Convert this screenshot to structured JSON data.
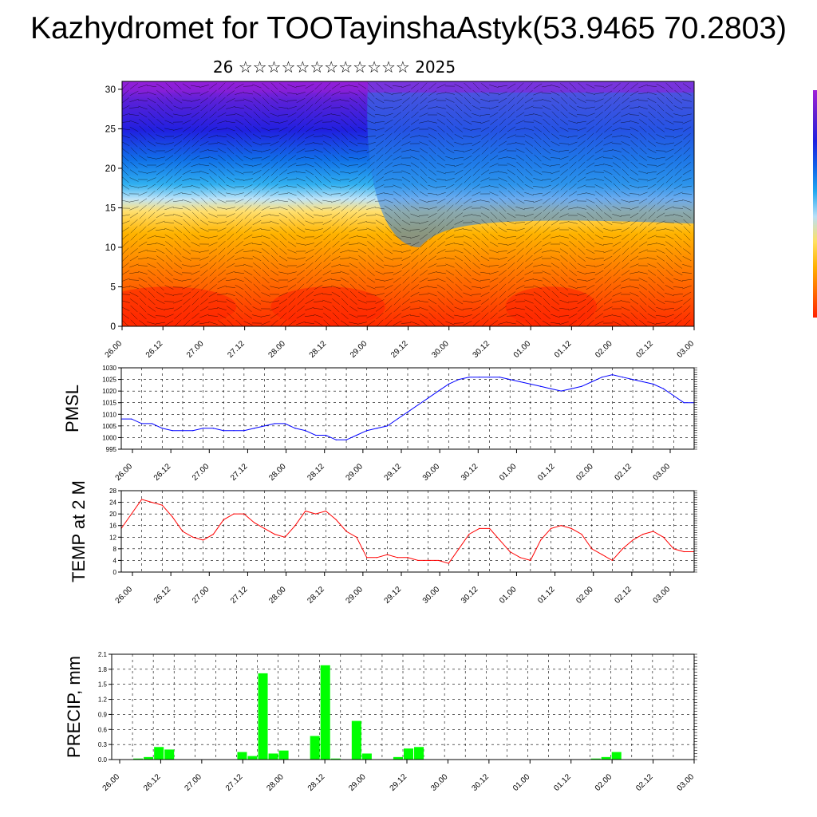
{
  "title": "Kazhydromet for TOOTayinshaAstyk(53.9465 70.2803)",
  "subtitle": "26 ☆☆☆☆☆☆☆☆☆☆☆☆ 2025",
  "x_tick_labels": [
    "26.00",
    "26.12",
    "27.00",
    "27.12",
    "28.00",
    "28.12",
    "29.00",
    "29.12",
    "30.00",
    "30.12",
    "01.00",
    "01.12",
    "02.00",
    "02.12",
    "03.00"
  ],
  "colors": {
    "pmsl_line": "#0000ff",
    "temp_line": "#ff0000",
    "precip_bar": "#00ff00",
    "grid": "#000000"
  },
  "chart_data": [
    {
      "type": "heatmap",
      "name": "cross-section",
      "ylim": [
        0,
        31
      ],
      "yticks": [
        0,
        5,
        10,
        15,
        20,
        25,
        30
      ],
      "xlabel": "",
      "ylabel": "",
      "colormap": [
        "#ff2000",
        "#ff6a00",
        "#ffb000",
        "#ffe060",
        "#b8e0f8",
        "#20a8f0",
        "#1060e8",
        "#2020e0",
        "#6020d0",
        "#a020d8"
      ],
      "layers_note_values": [
        5,
        10,
        15,
        20,
        25,
        30
      ]
    },
    {
      "type": "line",
      "name": "pmsl",
      "ylabel": "PMSL",
      "ylim": [
        995,
        1030
      ],
      "yticks": [
        995,
        1000,
        1005,
        1010,
        1015,
        1020,
        1025,
        1030
      ],
      "x": [
        0,
        1,
        2,
        3,
        4,
        5,
        6,
        7,
        8,
        9,
        10,
        11,
        12,
        13,
        14,
        15,
        16,
        17,
        18,
        19,
        20,
        21,
        22,
        23,
        24,
        25,
        26,
        27,
        28,
        29,
        30,
        31,
        32,
        33,
        34,
        35,
        36,
        37,
        38,
        39,
        40,
        41,
        42,
        43,
        44,
        45,
        46,
        47,
        48,
        49,
        50,
        51,
        52,
        53,
        54,
        55,
        56
      ],
      "values": [
        1008,
        1008,
        1006,
        1006,
        1004,
        1003,
        1003,
        1003,
        1004,
        1004,
        1003,
        1003,
        1003,
        1004,
        1005,
        1006,
        1006,
        1004,
        1003,
        1001,
        1001,
        999,
        999,
        1001,
        1003,
        1004,
        1005,
        1008,
        1011,
        1014,
        1017,
        1020,
        1023,
        1025,
        1026,
        1026,
        1026,
        1026,
        1025,
        1024,
        1023,
        1022,
        1021,
        1020,
        1021,
        1022,
        1024,
        1026,
        1027,
        1026,
        1025,
        1024,
        1023,
        1021,
        1018,
        1015,
        1015
      ],
      "xlabel": ""
    },
    {
      "type": "line",
      "name": "temp",
      "ylabel": "TEMP at 2 M",
      "ylim": [
        0,
        28
      ],
      "yticks": [
        0,
        4,
        8,
        12,
        16,
        20,
        24,
        28
      ],
      "x": [
        0,
        1,
        2,
        3,
        4,
        5,
        6,
        7,
        8,
        9,
        10,
        11,
        12,
        13,
        14,
        15,
        16,
        17,
        18,
        19,
        20,
        21,
        22,
        23,
        24,
        25,
        26,
        27,
        28,
        29,
        30,
        31,
        32,
        33,
        34,
        35,
        36,
        37,
        38,
        39,
        40,
        41,
        42,
        43,
        44,
        45,
        46,
        47,
        48,
        49,
        50,
        51,
        52,
        53,
        54,
        55,
        56
      ],
      "values": [
        15,
        20,
        25,
        24,
        23,
        19,
        14,
        12,
        11,
        13,
        18,
        20,
        20,
        17,
        15,
        13,
        12,
        16,
        21,
        20,
        21,
        18,
        14,
        12,
        5,
        5,
        6,
        5,
        5,
        4,
        4,
        4,
        3,
        8,
        13,
        15,
        15,
        11,
        7,
        5,
        4,
        11,
        15,
        16,
        15,
        13,
        8,
        6,
        4,
        8,
        11,
        13,
        14,
        12,
        8,
        7,
        7
      ],
      "xlabel": ""
    },
    {
      "type": "bar",
      "name": "precip",
      "ylabel": "PRECIP, mm",
      "ylim": [
        0,
        2.1
      ],
      "yticks": [
        "0.0",
        "0.3",
        "0.6",
        "0.9",
        "1.2",
        "1.5",
        "1.8",
        "2.1"
      ],
      "x": [
        0,
        1,
        2,
        3,
        4,
        5,
        6,
        7,
        8,
        9,
        10,
        11,
        12,
        13,
        14,
        15,
        16,
        17,
        18,
        19,
        20,
        21,
        22,
        23,
        24,
        25,
        26,
        27,
        28,
        29,
        30,
        31,
        32,
        33,
        34,
        35,
        36,
        37,
        38,
        39,
        40,
        41,
        42,
        43,
        44,
        45,
        46,
        47,
        48,
        49,
        50,
        51,
        52,
        53,
        54,
        55
      ],
      "values": [
        0,
        0,
        0.02,
        0.05,
        0.25,
        0.2,
        0,
        0,
        0,
        0,
        0,
        0,
        0.15,
        0.07,
        1.72,
        0.12,
        0.18,
        0,
        0,
        0.47,
        1.88,
        0.02,
        0,
        0.77,
        0.12,
        0,
        0,
        0.05,
        0.22,
        0.25,
        0,
        0,
        0,
        0,
        0,
        0,
        0,
        0,
        0,
        0,
        0,
        0,
        0,
        0,
        0,
        0,
        0.02,
        0.05,
        0.15,
        0,
        0,
        0,
        0,
        0,
        0,
        0
      ],
      "xlabel": ""
    }
  ]
}
